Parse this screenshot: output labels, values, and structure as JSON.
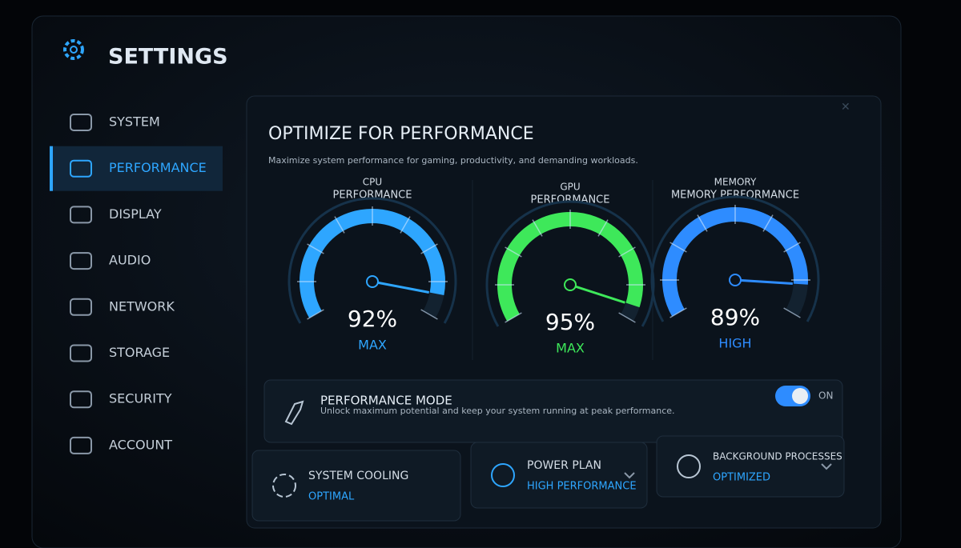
{
  "header": {
    "title": "SETTINGS"
  },
  "sidebar": {
    "items": [
      "SYSTEM",
      "PERFORMANCE",
      "DISPLAY",
      "AUDIO",
      "NETWORK",
      "STORAGE",
      "SECURITY",
      "ACCOUNT"
    ],
    "active": 1
  },
  "panel": {
    "title": "OPTIMIZE FOR PERFORMANCE",
    "subtitle": "Maximize system performance for gaming, productivity, and demanding workloads."
  },
  "gauges": [
    {
      "label": [
        "CPU",
        "PERFORMANCE"
      ],
      "value": 92,
      "value_label": "92%",
      "level": "MAX",
      "color": "#2ea6ff"
    },
    {
      "label": [
        "GPU",
        "PERFORMANCE"
      ],
      "value": 95,
      "value_label": "95%",
      "level": "MAX",
      "color": "#3ee85a"
    },
    {
      "label": [
        "MEMORY",
        "MEMORY PERFORMANCE"
      ],
      "value": 89,
      "value_label": "89%",
      "level": "HIGH",
      "color": "#2e8cff"
    }
  ],
  "mode": {
    "title": "PERFORMANCE MODE",
    "description": "Unlock maximum potential and keep your system running at peak performance.",
    "toggle": "ON"
  },
  "cards": [
    {
      "title": "SYSTEM COOLING",
      "value": "OPTIMAL"
    },
    {
      "title": "POWER PLAN",
      "value": "HIGH PERFORMANCE"
    },
    {
      "title": "BACKGROUND PROCESSES",
      "value": "OPTIMIZED"
    }
  ]
}
